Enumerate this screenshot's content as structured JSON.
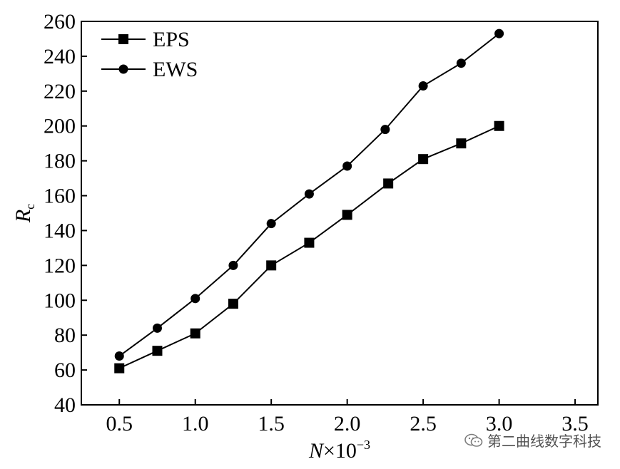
{
  "chart_data": {
    "type": "line",
    "xlabel": {
      "symbol": "N",
      "rest": "×10",
      "exponent": "−3"
    },
    "ylabel": {
      "symbol": "R",
      "subscript": "c"
    },
    "xlim": [
      0.25,
      3.65
    ],
    "ylim": [
      40,
      260
    ],
    "xticks": [
      0.5,
      1.0,
      1.5,
      2.0,
      2.5,
      3.0,
      3.5
    ],
    "xtick_labels": [
      "0.5",
      "1.0",
      "1.5",
      "2.0",
      "2.5",
      "3.0",
      "3.5"
    ],
    "yticks": [
      40,
      60,
      80,
      100,
      120,
      140,
      160,
      180,
      200,
      220,
      240,
      260
    ],
    "ytick_labels": [
      "40",
      "60",
      "80",
      "100",
      "120",
      "140",
      "160",
      "180",
      "200",
      "220",
      "240",
      "260"
    ],
    "grid": false,
    "legend_position": "top-left",
    "series": [
      {
        "name": "EPS",
        "marker": "square",
        "x": [
          0.5,
          0.75,
          1.0,
          1.25,
          1.5,
          1.75,
          2.0,
          2.27,
          2.5,
          2.75,
          3.0
        ],
        "y": [
          61,
          71,
          81,
          98,
          120,
          133,
          149,
          167,
          181,
          190,
          200
        ]
      },
      {
        "name": "EWS",
        "marker": "circle",
        "x": [
          0.5,
          0.75,
          1.0,
          1.25,
          1.5,
          1.75,
          2.0,
          2.25,
          2.5,
          2.75,
          3.0
        ],
        "y": [
          68,
          84,
          101,
          120,
          144,
          161,
          177,
          198,
          223,
          236,
          253
        ]
      }
    ]
  },
  "watermark": {
    "text": "第二曲线数字科技",
    "icon": "wechat-icon"
  }
}
